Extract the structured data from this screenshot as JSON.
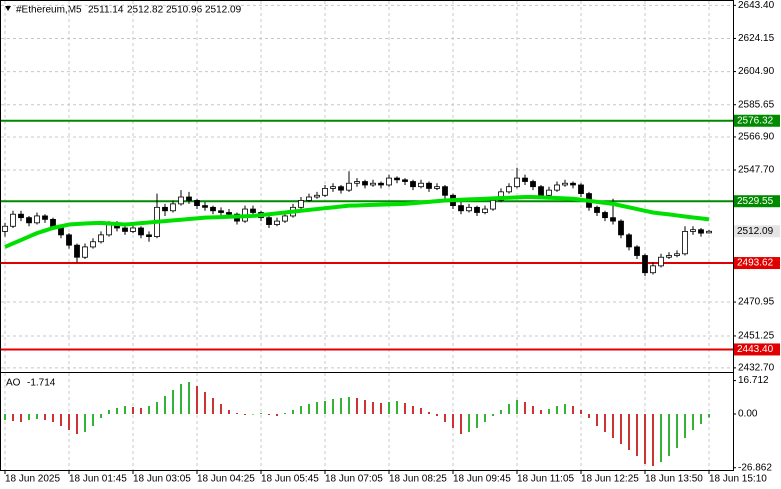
{
  "chart_data": {
    "type": "candlestick",
    "symbol": "#Ethereum,M5",
    "categories": [
      "18 Jun 2025",
      null,
      null,
      null,
      null,
      null,
      null,
      null,
      "18 Jun 01:45",
      null,
      null,
      null,
      null,
      null,
      null,
      null,
      "18 Jun 03:05",
      null,
      null,
      null,
      null,
      null,
      null,
      null,
      "18 Jun 04:25",
      null,
      null,
      null,
      null,
      null,
      null,
      null,
      "18 Jun 05:45",
      null,
      null,
      null,
      null,
      null,
      null,
      null,
      "18 Jun 07:05",
      null,
      null,
      null,
      null,
      null,
      null,
      null,
      "18 Jun 08:25",
      null,
      null,
      null,
      null,
      null,
      null,
      null,
      "18 Jun 09:45",
      null,
      null,
      null,
      null,
      null,
      null,
      null,
      "18 Jun 11:05",
      null,
      null,
      null,
      null,
      null,
      null,
      null,
      "18 Jun 12:25",
      null,
      null,
      null,
      null,
      null,
      null,
      null,
      "18 Jun 13:50",
      null,
      null,
      null,
      null,
      null,
      null,
      null,
      "18 Jun 15:10"
    ],
    "candles": [
      [
        2512,
        2517,
        2509,
        2515
      ],
      [
        2515,
        2524,
        2514,
        2522
      ],
      [
        2522,
        2524,
        2518,
        2520
      ],
      [
        2520,
        2521,
        2515,
        2517
      ],
      [
        2517,
        2523,
        2516,
        2521
      ],
      [
        2521,
        2522,
        2517,
        2519
      ],
      [
        2519,
        2520,
        2513,
        2515
      ],
      [
        2515,
        2516,
        2508,
        2510
      ],
      [
        2510,
        2511,
        2502,
        2504
      ],
      [
        2504,
        2505,
        2494,
        2497
      ],
      [
        2497,
        2505,
        2496,
        2503
      ],
      [
        2503,
        2508,
        2502,
        2506
      ],
      [
        2506,
        2512,
        2505,
        2510
      ],
      [
        2510,
        2518,
        2509,
        2516
      ],
      [
        2516,
        2518,
        2512,
        2514
      ],
      [
        2514,
        2515,
        2510,
        2512
      ],
      [
        2512,
        2516,
        2511,
        2514
      ],
      [
        2514,
        2515,
        2508,
        2510
      ],
      [
        2510,
        2512,
        2506,
        2509
      ],
      [
        2509,
        2534,
        2508,
        2526
      ],
      [
        2526,
        2528,
        2521,
        2524
      ],
      [
        2524,
        2530,
        2523,
        2528
      ],
      [
        2528,
        2536,
        2527,
        2532
      ],
      [
        2532,
        2535,
        2528,
        2530
      ],
      [
        2530,
        2531,
        2525,
        2527
      ],
      [
        2527,
        2529,
        2524,
        2526
      ],
      [
        2526,
        2527,
        2522,
        2524
      ],
      [
        2524,
        2526,
        2521,
        2523
      ],
      [
        2523,
        2525,
        2520,
        2522
      ],
      [
        2522,
        2523,
        2516,
        2518
      ],
      [
        2518,
        2527,
        2517,
        2525
      ],
      [
        2525,
        2527,
        2521,
        2523
      ],
      [
        2523,
        2524,
        2518,
        2520
      ],
      [
        2520,
        2521,
        2514,
        2516
      ],
      [
        2516,
        2520,
        2515,
        2518
      ],
      [
        2518,
        2523,
        2517,
        2521
      ],
      [
        2521,
        2528,
        2520,
        2526
      ],
      [
        2526,
        2532,
        2525,
        2530
      ],
      [
        2530,
        2534,
        2529,
        2532
      ],
      [
        2532,
        2535,
        2531,
        2533
      ],
      [
        2533,
        2539,
        2532,
        2537
      ],
      [
        2537,
        2540,
        2535,
        2538
      ],
      [
        2538,
        2539,
        2534,
        2536
      ],
      [
        2536,
        2547,
        2535,
        2540
      ],
      [
        2540,
        2543,
        2538,
        2541
      ],
      [
        2541,
        2542,
        2537,
        2539
      ],
      [
        2539,
        2542,
        2538,
        2540
      ],
      [
        2540,
        2541,
        2537,
        2539
      ],
      [
        2539,
        2545,
        2538,
        2543
      ],
      [
        2543,
        2544,
        2540,
        2542
      ],
      [
        2542,
        2543,
        2539,
        2541
      ],
      [
        2541,
        2542,
        2536,
        2538
      ],
      [
        2538,
        2542,
        2537,
        2540
      ],
      [
        2540,
        2541,
        2535,
        2537
      ],
      [
        2537,
        2540,
        2536,
        2538
      ],
      [
        2538,
        2539,
        2531,
        2533
      ],
      [
        2533,
        2534,
        2525,
        2527
      ],
      [
        2527,
        2529,
        2522,
        2524
      ],
      [
        2524,
        2528,
        2523,
        2526
      ],
      [
        2526,
        2527,
        2521,
        2523
      ],
      [
        2523,
        2527,
        2522,
        2525
      ],
      [
        2525,
        2532,
        2524,
        2530
      ],
      [
        2530,
        2537,
        2529,
        2535
      ],
      [
        2535,
        2540,
        2534,
        2538
      ],
      [
        2538,
        2549,
        2537,
        2543
      ],
      [
        2543,
        2545,
        2539,
        2541
      ],
      [
        2541,
        2542,
        2536,
        2538
      ],
      [
        2538,
        2539,
        2531,
        2533
      ],
      [
        2533,
        2538,
        2532,
        2536
      ],
      [
        2536,
        2541,
        2535,
        2539
      ],
      [
        2539,
        2542,
        2538,
        2540
      ],
      [
        2540,
        2541,
        2537,
        2539
      ],
      [
        2539,
        2540,
        2532,
        2534
      ],
      [
        2534,
        2535,
        2524,
        2526
      ],
      [
        2526,
        2527,
        2521,
        2523
      ],
      [
        2523,
        2524,
        2518,
        2520
      ],
      [
        2520,
        2531,
        2516,
        2518
      ],
      [
        2518,
        2519,
        2508,
        2510
      ],
      [
        2510,
        2511,
        2501,
        2503
      ],
      [
        2503,
        2504,
        2496,
        2498
      ],
      [
        2498,
        2499,
        2486,
        2488
      ],
      [
        2488,
        2494,
        2487,
        2492
      ],
      [
        2492,
        2499,
        2491,
        2497
      ],
      [
        2497,
        2500,
        2496,
        2498
      ],
      [
        2498,
        2501,
        2497,
        2499
      ],
      [
        2499,
        2515,
        2498,
        2512
      ],
      [
        2512,
        2515,
        2510,
        2513
      ],
      [
        2513,
        2514,
        2509,
        2511
      ],
      [
        2511.14,
        2512.82,
        2510.96,
        2512.09
      ]
    ],
    "candle_colors": {
      "up": "#ffffff",
      "down": "#000000",
      "outline": "#000000"
    },
    "ylim": [
      2430.3,
      2646.5
    ],
    "yticks": [
      {
        "value": 2643.4,
        "label": "2643.40"
      },
      {
        "value": 2624.15,
        "label": "2624.15"
      },
      {
        "value": 2604.9,
        "label": "2604.90"
      },
      {
        "value": 2585.65,
        "label": "2585.65"
      },
      {
        "value": 2566.9,
        "label": "2566.90"
      },
      {
        "value": 2547.7,
        "label": "2547.70"
      },
      {
        "value": 2470.95,
        "label": "2470.95"
      },
      {
        "value": 2451.25,
        "label": "2451.25"
      },
      {
        "value": 2432.7,
        "label": "2432.70"
      }
    ],
    "grid": true,
    "moving_average": {
      "color": "#00e000",
      "values": [
        2503,
        2505,
        2507,
        2509,
        2511,
        2512.5,
        2514,
        2515,
        2516,
        2516.3,
        2516.6,
        2516.8,
        2517,
        2516.6,
        2516.3,
        2516,
        2516.4,
        2516.8,
        2517.2,
        2517.6,
        2518,
        2518.4,
        2518.8,
        2519.2,
        2519.6,
        2520,
        2520.2,
        2520.3,
        2520.5,
        2520.7,
        2520.8,
        2521,
        2521.5,
        2522,
        2522.5,
        2523,
        2523.5,
        2524,
        2524.5,
        2525,
        2525.5,
        2526,
        2526.5,
        2527,
        2527.1,
        2527.3,
        2527.4,
        2527.6,
        2527.7,
        2527.9,
        2528,
        2528.4,
        2528.8,
        2529.2,
        2529.6,
        2530,
        2530.2,
        2530.4,
        2530.6,
        2530.8,
        2531,
        2531.2,
        2531.4,
        2531.6,
        2531.8,
        2532,
        2532,
        2531.8,
        2531.6,
        2531.4,
        2531.2,
        2531,
        2530.4,
        2529.8,
        2529.2,
        2528.6,
        2528,
        2527,
        2526,
        2525,
        2524,
        2523,
        2522.4,
        2521.9,
        2521.3,
        2520.7,
        2520.1,
        2519.6,
        2519
      ]
    },
    "levels": [
      {
        "value": 2576.32,
        "label": "2576.32",
        "color": "#008a00"
      },
      {
        "value": 2529.55,
        "label": "2529.55",
        "color": "#008a00"
      },
      {
        "value": 2493.62,
        "label": "2493.62",
        "color": "#e00000"
      },
      {
        "value": 2443.4,
        "label": "2443.40",
        "color": "#e00000"
      }
    ],
    "price_label_color": "#e4e4e4",
    "ao": {
      "name": "AO",
      "up_color": "#00a000",
      "down_color": "#c00000",
      "values": [
        -3,
        -3.5,
        -4,
        -3,
        -2.5,
        -3,
        -4,
        -6,
        -8,
        -10,
        -9,
        -6,
        -2,
        2,
        3,
        4,
        3.5,
        3,
        4,
        6,
        9,
        12,
        15,
        16,
        14,
        11,
        8,
        5,
        2,
        0.5,
        -0.5,
        -0.3,
        0.5,
        -0.5,
        -1,
        0.5,
        2,
        4,
        5,
        6,
        6.5,
        7.5,
        8,
        8.5,
        8,
        7,
        6,
        5.5,
        6,
        6.5,
        5.5,
        4,
        3,
        1,
        -1,
        -4,
        -7,
        -10,
        -9,
        -7,
        -4,
        -1,
        2,
        5,
        7,
        6,
        4,
        2,
        2.5,
        4,
        5,
        4,
        2,
        -2,
        -6,
        -9,
        -12,
        -15,
        -18,
        -21,
        -25,
        -26,
        -24,
        -21,
        -17,
        -12,
        -8,
        -5,
        -1.714
      ],
      "y2lim": [
        -28,
        20
      ],
      "y2ticks": [
        16.712,
        {
          "value": 0,
          "label": "0.00"
        },
        -26.862
      ]
    }
  }
}
